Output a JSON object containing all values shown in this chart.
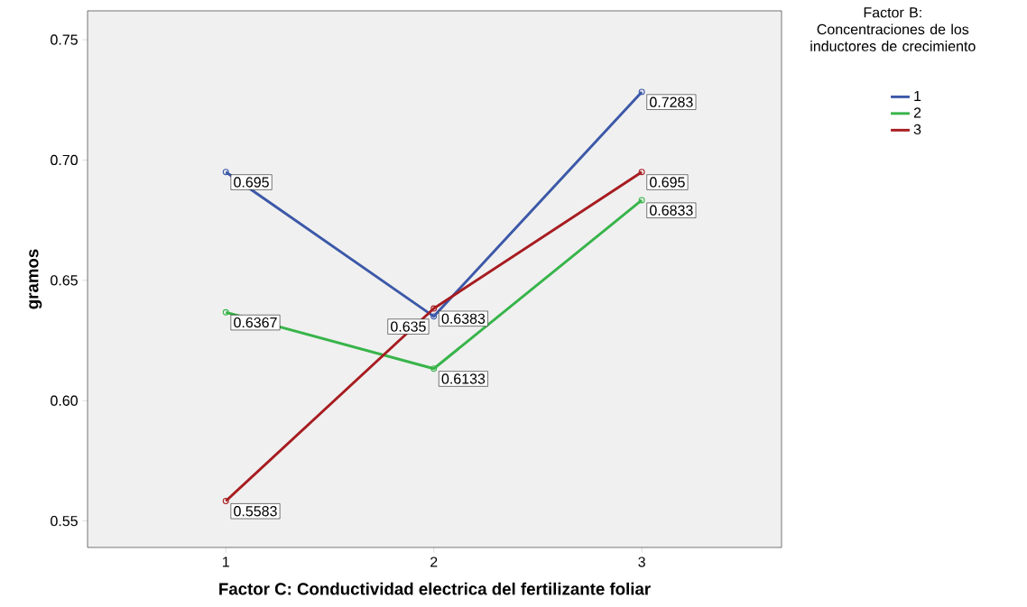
{
  "chart_data": {
    "type": "line",
    "xlabel": "Factor C: Conductividad electrica del fertilizante foliar",
    "ylabel": "gramos",
    "legend_title": "Factor B: Concentraciones de los inductores de crecimiento",
    "categories": [
      "1",
      "2",
      "3"
    ],
    "series": [
      {
        "name": "1",
        "color": "#3c58a8",
        "values": [
          0.695,
          0.635,
          0.7283
        ]
      },
      {
        "name": "2",
        "color": "#38b44a",
        "values": [
          0.6367,
          0.6133,
          0.6833
        ]
      },
      {
        "name": "3",
        "color": "#a71c20",
        "values": [
          0.5583,
          0.6383,
          0.695
        ]
      }
    ],
    "ylim": [
      0.539,
      0.762
    ],
    "yticks": [
      0.55,
      {
        "value": 0.6,
        "label": "0.60"
      },
      0.65,
      {
        "value": 0.7,
        "label": "0.70"
      },
      0.75
    ],
    "data_labels": true,
    "marker": "circle",
    "line_style": "solid",
    "grid": false,
    "legend": "right"
  }
}
